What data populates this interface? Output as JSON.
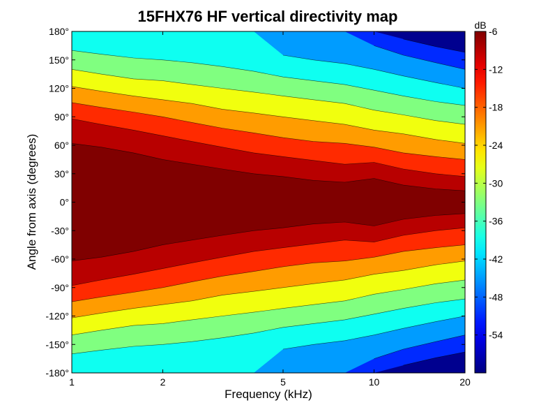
{
  "chart_data": {
    "type": "heatmap",
    "subtype": "filled-contour",
    "title": "15FHX76 HF vertical directivity map",
    "xlabel": "Frequency (kHz)",
    "ylabel": "Angle from axis (degrees)",
    "x_scale": "log",
    "xlim": [
      1,
      20
    ],
    "ylim": [
      -180,
      180
    ],
    "x_ticks": [
      1,
      2,
      5,
      10,
      20
    ],
    "x_tick_labels": [
      "1",
      "2",
      "5",
      "10",
      "20"
    ],
    "y_ticks": [
      180,
      150,
      120,
      90,
      60,
      30,
      0,
      -30,
      -60,
      -90,
      -120,
      -150,
      -180
    ],
    "y_tick_labels": [
      "180°",
      "150°",
      "120°",
      "90°",
      "60°",
      "30°",
      "0°",
      "-30°",
      "-60°",
      "-90°",
      "-120°",
      "-150°",
      "-180°"
    ],
    "colorbar": {
      "label": "dB",
      "range": [
        -60,
        -6
      ],
      "ticks": [
        -6,
        -12,
        -18,
        -24,
        -30,
        -36,
        -42,
        -48,
        -54
      ],
      "tick_labels": [
        "-6",
        "-12",
        "-18",
        "-24",
        "-30",
        "-36",
        "-42",
        "-48",
        "-54"
      ],
      "colormap": "jet"
    },
    "contour_levels_db": [
      -6,
      -9,
      -12,
      -15,
      -18,
      -21,
      -24,
      -27,
      -30,
      -33,
      -36,
      -39,
      -42,
      -45,
      -48,
      -51,
      -54
    ],
    "frequency_khz": [
      1,
      1.25,
      1.6,
      2,
      2.5,
      3.15,
      4,
      5,
      6.3,
      8,
      10,
      12.5,
      16,
      20
    ],
    "contour_angle_deg": {
      "-6": [
        62,
        58,
        52,
        45,
        40,
        35,
        30,
        27,
        23,
        21,
        25,
        18,
        14,
        12
      ],
      "-12": [
        88,
        82,
        76,
        70,
        64,
        58,
        52,
        48,
        44,
        40,
        42,
        35,
        30,
        27
      ],
      "-18": [
        105,
        100,
        95,
        90,
        84,
        78,
        73,
        68,
        64,
        62,
        58,
        52,
        48,
        45
      ],
      "-24": [
        122,
        117,
        112,
        108,
        104,
        98,
        94,
        90,
        86,
        82,
        76,
        72,
        66,
        62
      ],
      "-30": [
        140,
        135,
        130,
        128,
        124,
        120,
        116,
        112,
        108,
        104,
        97,
        92,
        86,
        82
      ],
      "-36": [
        160,
        156,
        152,
        150,
        147,
        143,
        138,
        132,
        128,
        124,
        118,
        112,
        106,
        102
      ],
      "-42": [
        181,
        181,
        181,
        181,
        181,
        181,
        181,
        155,
        150,
        146,
        140,
        133,
        126,
        120
      ],
      "-48": [
        181,
        181,
        181,
        181,
        181,
        181,
        181,
        181,
        181,
        181,
        165,
        155,
        147,
        140
      ],
      "-54": [
        181,
        181,
        181,
        181,
        181,
        181,
        181,
        181,
        181,
        181,
        181,
        172,
        164,
        158
      ]
    },
    "grid": false
  }
}
